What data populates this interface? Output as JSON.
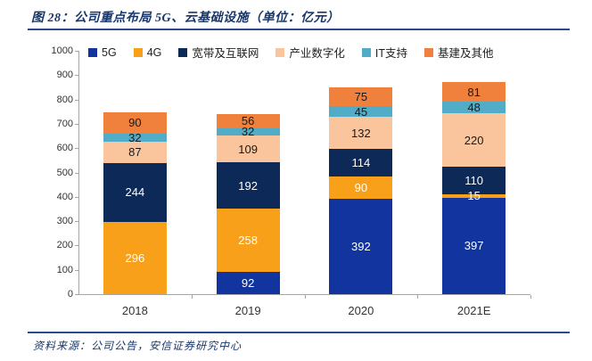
{
  "header": {
    "title": "图 28：公司重点布局 5G、云基础设施（单位：亿元）"
  },
  "footer": {
    "source": "资料来源：公司公告，安信证券研究中心"
  },
  "theme": {
    "title_color": "#17366B",
    "rule_color": "#2A4A8F",
    "axis_color": "#a6a6a6",
    "tick_label_color": "#333333"
  },
  "chart_data": {
    "type": "bar",
    "stacked": true,
    "categories": [
      "2018",
      "2019",
      "2020",
      "2021E"
    ],
    "series": [
      {
        "name": "5G",
        "color": "#11349E",
        "label_color": "#ffffff",
        "values": [
          0,
          92,
          392,
          397
        ]
      },
      {
        "name": "4G",
        "color": "#F9A01B",
        "label_color": "#ffffff",
        "values": [
          296,
          258,
          90,
          15
        ]
      },
      {
        "name": "宽带及互联网",
        "color": "#0C2957",
        "label_color": "#ffffff",
        "values": [
          244,
          192,
          114,
          110
        ]
      },
      {
        "name": "产业数字化",
        "color": "#FAC49C",
        "label_color": "#1a1a1a",
        "values": [
          87,
          109,
          132,
          220
        ]
      },
      {
        "name": "IT支持",
        "color": "#51ACC8",
        "label_color": "#1a1a1a",
        "values": [
          32,
          32,
          45,
          48
        ]
      },
      {
        "name": "基建及其他",
        "color": "#EF813C",
        "label_color": "#1a1a1a",
        "values": [
          90,
          56,
          75,
          81
        ]
      }
    ],
    "title": "公司重点布局5G、云基础设施",
    "unit": "亿元",
    "xlabel": "",
    "ylabel": "",
    "ylim": [
      0,
      1000
    ],
    "ytick_step": 100,
    "grid": false,
    "legend_position": "top"
  }
}
